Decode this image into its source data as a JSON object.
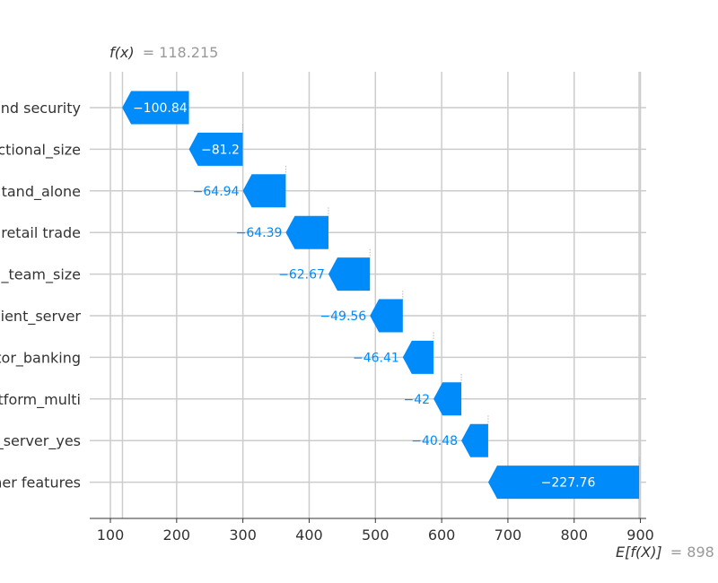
{
  "chart_data": {
    "type": "bar",
    "title": "",
    "xlabel": "",
    "ylabel": "",
    "xlim": [
      70,
      905
    ],
    "xticks": [
      100,
      200,
      300,
      400,
      500,
      600,
      700,
      800,
      900
    ],
    "grid": true,
    "legend": "none",
    "fx": {
      "symbol": "f(x)",
      "eq": "= 118.215",
      "value": 118.215
    },
    "efx": {
      "symbol": "E[f(X)]",
      "eq": "= 898",
      "value": 898
    },
    "categories": [
      "and security",
      "ctional_size",
      "tand_alone",
      " retail trade",
      "_team_size",
      "ient_server",
      "tor_banking",
      "tform_multi",
      "_server_yes",
      "her features"
    ],
    "series": [
      {
        "values": [
          -100.84,
          -81.2,
          -64.94,
          -64.39,
          -62.67,
          -49.56,
          -46.41,
          -42,
          -40.48,
          -227.76
        ],
        "labels": [
          "−100.84",
          "−81.2",
          "−64.94",
          "−64.39",
          "−62.67",
          "−49.56",
          "−46.41",
          "−42",
          "−40.48",
          "−227.76"
        ]
      }
    ],
    "colors": {
      "negative": "#008bfb",
      "grid": "#cccccc",
      "axis": "#333333",
      "muted": "#999999",
      "label_inside": "#ffffff"
    }
  }
}
